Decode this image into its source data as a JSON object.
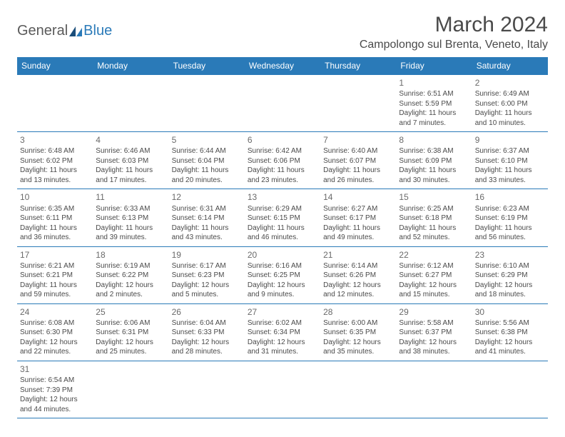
{
  "logo": {
    "part1": "General",
    "part2": "Blue"
  },
  "title": "March 2024",
  "location": "Campolongo sul Brenta, Veneto, Italy",
  "colors": {
    "header_bg": "#2a7ab8",
    "header_text": "#ffffff",
    "border": "#2a7ab8",
    "text": "#4a4a4a",
    "daynum": "#6a6a6a",
    "logo_accent": "#2a7ab8"
  },
  "day_headers": [
    "Sunday",
    "Monday",
    "Tuesday",
    "Wednesday",
    "Thursday",
    "Friday",
    "Saturday"
  ],
  "weeks": [
    [
      {
        "empty": true
      },
      {
        "empty": true
      },
      {
        "empty": true
      },
      {
        "empty": true
      },
      {
        "empty": true
      },
      {
        "n": "1",
        "sr": "6:51 AM",
        "ss": "5:59 PM",
        "dl": "11 hours and 7 minutes."
      },
      {
        "n": "2",
        "sr": "6:49 AM",
        "ss": "6:00 PM",
        "dl": "11 hours and 10 minutes."
      }
    ],
    [
      {
        "n": "3",
        "sr": "6:48 AM",
        "ss": "6:02 PM",
        "dl": "11 hours and 13 minutes."
      },
      {
        "n": "4",
        "sr": "6:46 AM",
        "ss": "6:03 PM",
        "dl": "11 hours and 17 minutes."
      },
      {
        "n": "5",
        "sr": "6:44 AM",
        "ss": "6:04 PM",
        "dl": "11 hours and 20 minutes."
      },
      {
        "n": "6",
        "sr": "6:42 AM",
        "ss": "6:06 PM",
        "dl": "11 hours and 23 minutes."
      },
      {
        "n": "7",
        "sr": "6:40 AM",
        "ss": "6:07 PM",
        "dl": "11 hours and 26 minutes."
      },
      {
        "n": "8",
        "sr": "6:38 AM",
        "ss": "6:09 PM",
        "dl": "11 hours and 30 minutes."
      },
      {
        "n": "9",
        "sr": "6:37 AM",
        "ss": "6:10 PM",
        "dl": "11 hours and 33 minutes."
      }
    ],
    [
      {
        "n": "10",
        "sr": "6:35 AM",
        "ss": "6:11 PM",
        "dl": "11 hours and 36 minutes."
      },
      {
        "n": "11",
        "sr": "6:33 AM",
        "ss": "6:13 PM",
        "dl": "11 hours and 39 minutes."
      },
      {
        "n": "12",
        "sr": "6:31 AM",
        "ss": "6:14 PM",
        "dl": "11 hours and 43 minutes."
      },
      {
        "n": "13",
        "sr": "6:29 AM",
        "ss": "6:15 PM",
        "dl": "11 hours and 46 minutes."
      },
      {
        "n": "14",
        "sr": "6:27 AM",
        "ss": "6:17 PM",
        "dl": "11 hours and 49 minutes."
      },
      {
        "n": "15",
        "sr": "6:25 AM",
        "ss": "6:18 PM",
        "dl": "11 hours and 52 minutes."
      },
      {
        "n": "16",
        "sr": "6:23 AM",
        "ss": "6:19 PM",
        "dl": "11 hours and 56 minutes."
      }
    ],
    [
      {
        "n": "17",
        "sr": "6:21 AM",
        "ss": "6:21 PM",
        "dl": "11 hours and 59 minutes."
      },
      {
        "n": "18",
        "sr": "6:19 AM",
        "ss": "6:22 PM",
        "dl": "12 hours and 2 minutes."
      },
      {
        "n": "19",
        "sr": "6:17 AM",
        "ss": "6:23 PM",
        "dl": "12 hours and 5 minutes."
      },
      {
        "n": "20",
        "sr": "6:16 AM",
        "ss": "6:25 PM",
        "dl": "12 hours and 9 minutes."
      },
      {
        "n": "21",
        "sr": "6:14 AM",
        "ss": "6:26 PM",
        "dl": "12 hours and 12 minutes."
      },
      {
        "n": "22",
        "sr": "6:12 AM",
        "ss": "6:27 PM",
        "dl": "12 hours and 15 minutes."
      },
      {
        "n": "23",
        "sr": "6:10 AM",
        "ss": "6:29 PM",
        "dl": "12 hours and 18 minutes."
      }
    ],
    [
      {
        "n": "24",
        "sr": "6:08 AM",
        "ss": "6:30 PM",
        "dl": "12 hours and 22 minutes."
      },
      {
        "n": "25",
        "sr": "6:06 AM",
        "ss": "6:31 PM",
        "dl": "12 hours and 25 minutes."
      },
      {
        "n": "26",
        "sr": "6:04 AM",
        "ss": "6:33 PM",
        "dl": "12 hours and 28 minutes."
      },
      {
        "n": "27",
        "sr": "6:02 AM",
        "ss": "6:34 PM",
        "dl": "12 hours and 31 minutes."
      },
      {
        "n": "28",
        "sr": "6:00 AM",
        "ss": "6:35 PM",
        "dl": "12 hours and 35 minutes."
      },
      {
        "n": "29",
        "sr": "5:58 AM",
        "ss": "6:37 PM",
        "dl": "12 hours and 38 minutes."
      },
      {
        "n": "30",
        "sr": "5:56 AM",
        "ss": "6:38 PM",
        "dl": "12 hours and 41 minutes."
      }
    ],
    [
      {
        "n": "31",
        "sr": "6:54 AM",
        "ss": "7:39 PM",
        "dl": "12 hours and 44 minutes."
      },
      {
        "empty": true
      },
      {
        "empty": true
      },
      {
        "empty": true
      },
      {
        "empty": true
      },
      {
        "empty": true
      },
      {
        "empty": true
      }
    ]
  ],
  "labels": {
    "sunrise": "Sunrise:",
    "sunset": "Sunset:",
    "daylight": "Daylight:"
  }
}
